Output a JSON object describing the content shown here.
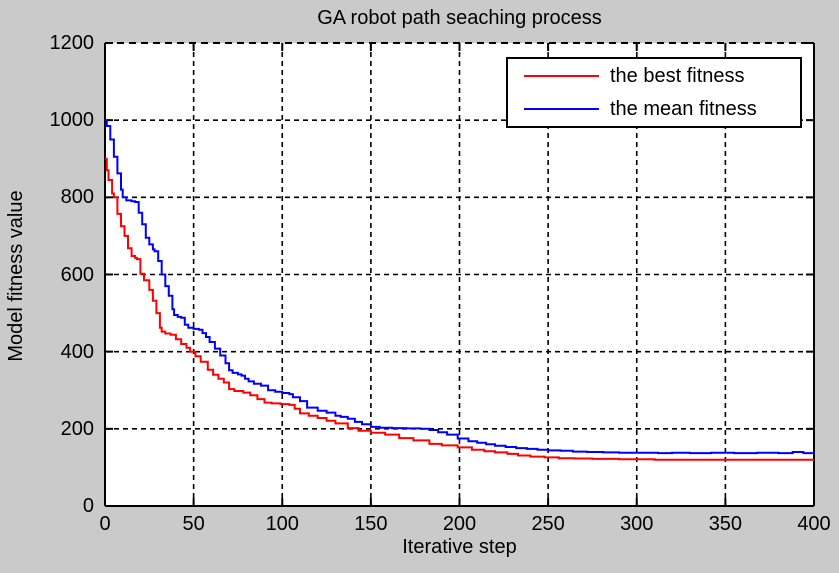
{
  "chart_data": {
    "type": "line",
    "title": "GA robot path seaching process",
    "xlabel": "Iterative step",
    "ylabel": "Model fitness value",
    "xlim": [
      0,
      400
    ],
    "ylim": [
      0,
      1200
    ],
    "xticks": [
      0,
      50,
      100,
      150,
      200,
      250,
      300,
      350,
      400
    ],
    "yticks": [
      0,
      200,
      400,
      600,
      800,
      1000,
      1200
    ],
    "grid": true,
    "grid_style": "dashed",
    "legend_position": "top-right",
    "colors": {
      "background": "#cacaca",
      "plot_background": "#ffffff",
      "grid": "#000000",
      "axis": "#000000",
      "text": "#000000"
    },
    "series": [
      {
        "name": "the best fitness",
        "color": "#ff0000",
        "points": [
          [
            0,
            900
          ],
          [
            1,
            870
          ],
          [
            2,
            845
          ],
          [
            4,
            810
          ],
          [
            5,
            800
          ],
          [
            7,
            757
          ],
          [
            9,
            725
          ],
          [
            11,
            700
          ],
          [
            13,
            668
          ],
          [
            15,
            648
          ],
          [
            17,
            643
          ],
          [
            18,
            640
          ],
          [
            20,
            602
          ],
          [
            22,
            585
          ],
          [
            25,
            560
          ],
          [
            27,
            532
          ],
          [
            29,
            500
          ],
          [
            31,
            462
          ],
          [
            32,
            452
          ],
          [
            34,
            447
          ],
          [
            37,
            444
          ],
          [
            40,
            432
          ],
          [
            43,
            420
          ],
          [
            46,
            410
          ],
          [
            48,
            400
          ],
          [
            51,
            388
          ],
          [
            54,
            374
          ],
          [
            58,
            353
          ],
          [
            61,
            340
          ],
          [
            64,
            330
          ],
          [
            67,
            320
          ],
          [
            70,
            303
          ],
          [
            73,
            298
          ],
          [
            78,
            294
          ],
          [
            82,
            287
          ],
          [
            86,
            277
          ],
          [
            90,
            268
          ],
          [
            94,
            266
          ],
          [
            99,
            264
          ],
          [
            104,
            262
          ],
          [
            107,
            252
          ],
          [
            110,
            240
          ],
          [
            115,
            234
          ],
          [
            120,
            228
          ],
          [
            125,
            221
          ],
          [
            130,
            214
          ],
          [
            137,
            202
          ],
          [
            143,
            195
          ],
          [
            150,
            190
          ],
          [
            158,
            185
          ],
          [
            166,
            176
          ],
          [
            174,
            170
          ],
          [
            183,
            161
          ],
          [
            190,
            157
          ],
          [
            199,
            152
          ],
          [
            207,
            146
          ],
          [
            214,
            142
          ],
          [
            220,
            139
          ],
          [
            227,
            135
          ],
          [
            233,
            131
          ],
          [
            240,
            128
          ],
          [
            248,
            126
          ],
          [
            256,
            124
          ],
          [
            265,
            123
          ],
          [
            275,
            122
          ],
          [
            290,
            121
          ],
          [
            310,
            120
          ],
          [
            340,
            120
          ],
          [
            370,
            120
          ],
          [
            400,
            120
          ]
        ]
      },
      {
        "name": "the mean fitness",
        "color": "#0000ff",
        "points": [
          [
            0,
            1000
          ],
          [
            1,
            985
          ],
          [
            3,
            950
          ],
          [
            5,
            905
          ],
          [
            7,
            862
          ],
          [
            9,
            820
          ],
          [
            10,
            800
          ],
          [
            12,
            792
          ],
          [
            15,
            790
          ],
          [
            17,
            788
          ],
          [
            19,
            760
          ],
          [
            21,
            730
          ],
          [
            23,
            695
          ],
          [
            25,
            678
          ],
          [
            27,
            665
          ],
          [
            28,
            660
          ],
          [
            30,
            635
          ],
          [
            32,
            600
          ],
          [
            34,
            570
          ],
          [
            36,
            545
          ],
          [
            38,
            510
          ],
          [
            39,
            495
          ],
          [
            41,
            490
          ],
          [
            43,
            488
          ],
          [
            45,
            470
          ],
          [
            47,
            462
          ],
          [
            50,
            459
          ],
          [
            53,
            457
          ],
          [
            55,
            448
          ],
          [
            57,
            438
          ],
          [
            59,
            425
          ],
          [
            62,
            408
          ],
          [
            65,
            390
          ],
          [
            68,
            370
          ],
          [
            70,
            352
          ],
          [
            72,
            345
          ],
          [
            75,
            341
          ],
          [
            77,
            338
          ],
          [
            79,
            330
          ],
          [
            81,
            323
          ],
          [
            84,
            317
          ],
          [
            88,
            312
          ],
          [
            92,
            300
          ],
          [
            96,
            296
          ],
          [
            100,
            293
          ],
          [
            104,
            290
          ],
          [
            106,
            282
          ],
          [
            110,
            272
          ],
          [
            114,
            255
          ],
          [
            120,
            247
          ],
          [
            125,
            242
          ],
          [
            130,
            234
          ],
          [
            133,
            231
          ],
          [
            137,
            226
          ],
          [
            141,
            218
          ],
          [
            145,
            212
          ],
          [
            150,
            205
          ],
          [
            155,
            203
          ],
          [
            162,
            202
          ],
          [
            170,
            201
          ],
          [
            178,
            200
          ],
          [
            183,
            197
          ],
          [
            188,
            191
          ],
          [
            193,
            185
          ],
          [
            199,
            175
          ],
          [
            205,
            168
          ],
          [
            210,
            164
          ],
          [
            215,
            160
          ],
          [
            220,
            156
          ],
          [
            226,
            153
          ],
          [
            232,
            150
          ],
          [
            238,
            148
          ],
          [
            244,
            146
          ],
          [
            250,
            144
          ],
          [
            257,
            143
          ],
          [
            264,
            141
          ],
          [
            272,
            140
          ],
          [
            281,
            139
          ],
          [
            290,
            138
          ],
          [
            300,
            138
          ],
          [
            312,
            137
          ],
          [
            320,
            138
          ],
          [
            330,
            137
          ],
          [
            342,
            138
          ],
          [
            355,
            137
          ],
          [
            368,
            138
          ],
          [
            380,
            137
          ],
          [
            388,
            140
          ],
          [
            394,
            137
          ],
          [
            400,
            138
          ]
        ]
      }
    ]
  }
}
